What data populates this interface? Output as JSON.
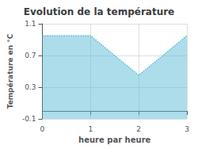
{
  "chart_data": {
    "type": "area",
    "title": "Evolution de la température",
    "xlabel": "heure par heure",
    "ylabel": "Température en °C",
    "x": [
      0,
      1,
      2,
      3
    ],
    "values": [
      0.95,
      0.95,
      0.45,
      0.95
    ],
    "color": "#5bbcd6",
    "line_style": "dotted",
    "xlim": [
      0,
      3
    ],
    "xticks": [
      0,
      1,
      2,
      3
    ],
    "ylim": [
      -0.1,
      1.1
    ],
    "yticks": [
      -0.1,
      0.3,
      0.7,
      1.1
    ],
    "grid": true
  }
}
